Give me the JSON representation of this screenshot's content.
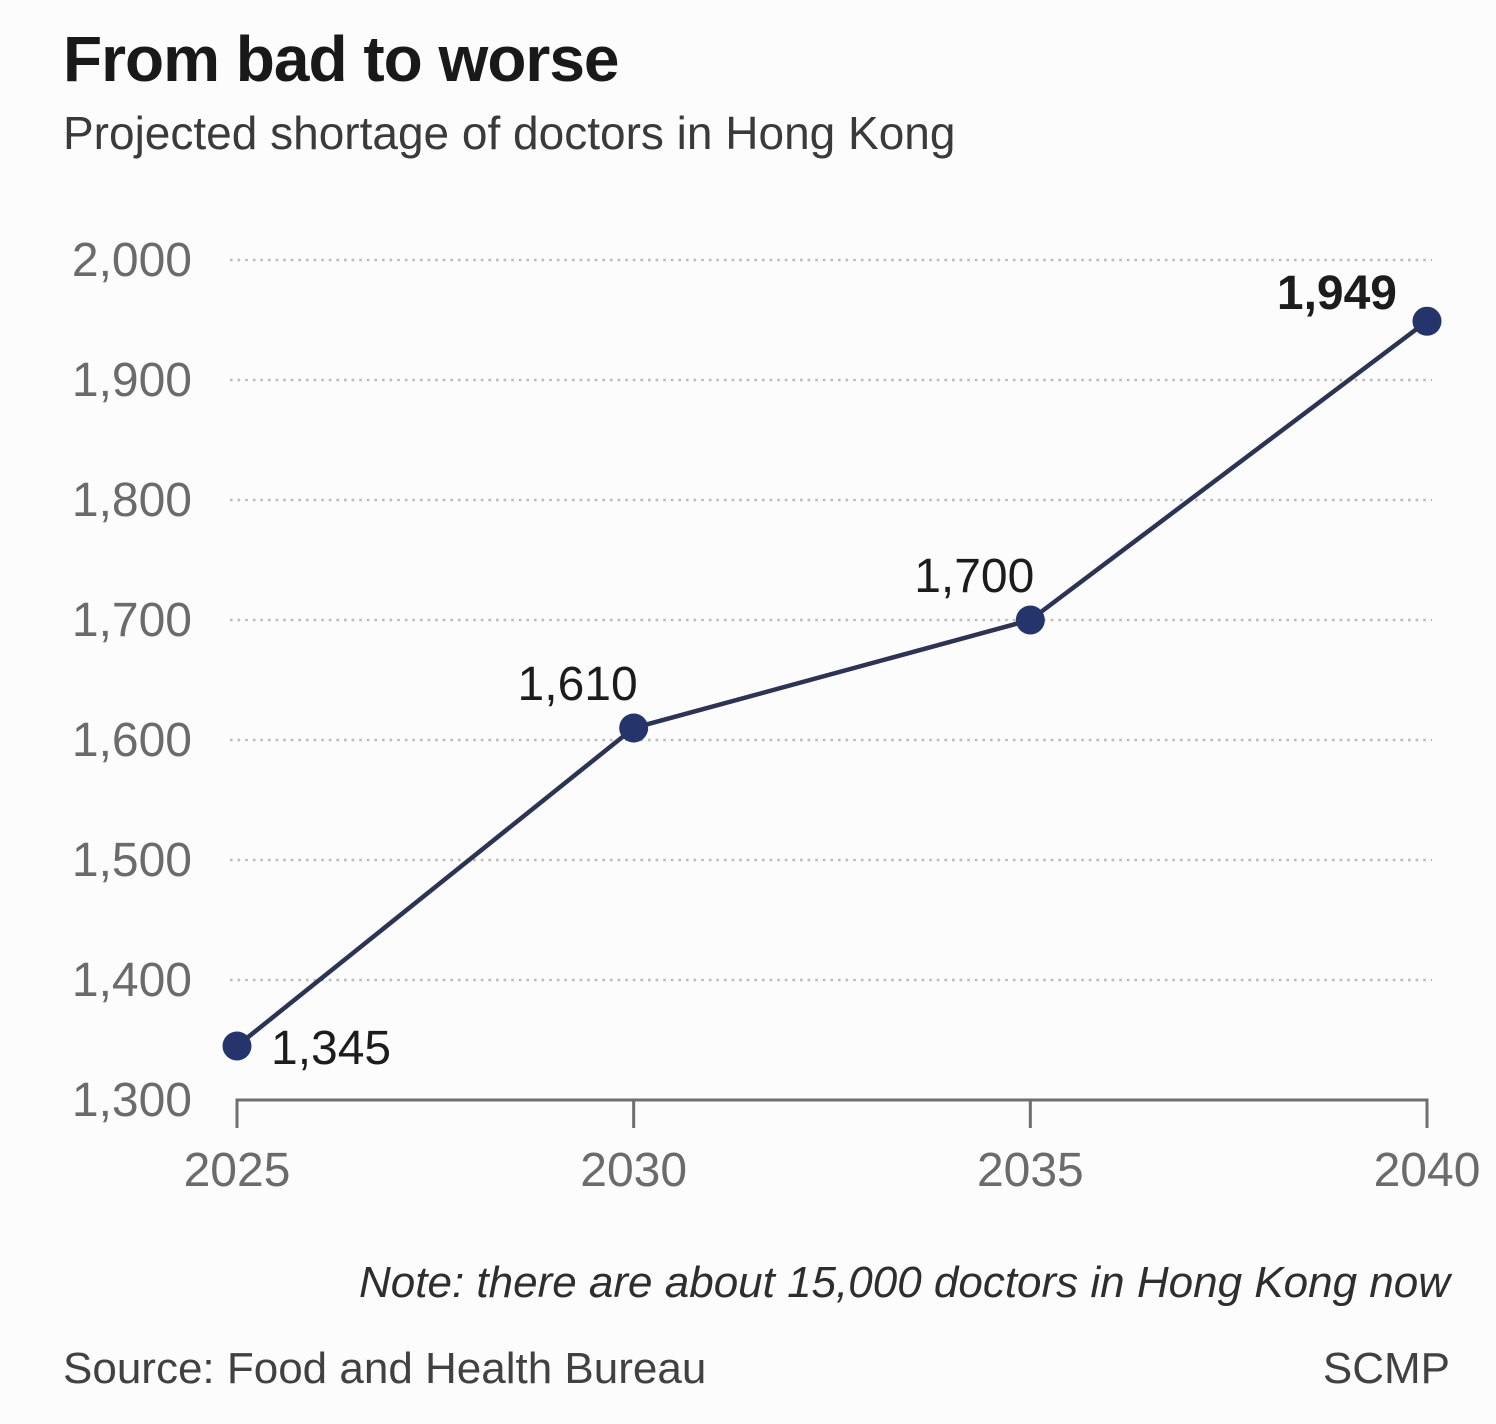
{
  "header": {
    "title": "From bad to worse",
    "subtitle": "Projected shortage of doctors in Hong Kong"
  },
  "footer": {
    "note": "Note: there are about 15,000 doctors in Hong Kong now",
    "source": "Source: Food and Health Bureau",
    "credit": "SCMP"
  },
  "chart_data": {
    "type": "line",
    "title": "From bad to worse",
    "subtitle": "Projected shortage of doctors in Hong Kong",
    "x": [
      2025,
      2030,
      2035,
      2040
    ],
    "values": [
      1345,
      1610,
      1700,
      1949
    ],
    "point_labels": [
      "1,345",
      "1,610",
      "1,700",
      "1,949"
    ],
    "point_label_placements": [
      "right",
      "above-left",
      "above-left",
      "above-left-bold"
    ],
    "xtick_labels": [
      "2025",
      "2030",
      "2035",
      "2040"
    ],
    "yticks": [
      1300,
      1400,
      1500,
      1600,
      1700,
      1800,
      1900,
      2000
    ],
    "ytick_labels": [
      "1,300",
      "1,400",
      "1,500",
      "1,600",
      "1,700",
      "1,800",
      "1,900",
      "2,000"
    ],
    "ylim": [
      1300,
      2000
    ],
    "grid": "dotted horizontal gridlines, none at baseline",
    "legend": "none",
    "colors": {
      "line": "#2d3453",
      "point": "#25356b",
      "axis": "#6f6f6f",
      "grid": "#bcbcbc",
      "tick_text": "#6b6b6b",
      "label_text": "#1c1c1c"
    }
  }
}
